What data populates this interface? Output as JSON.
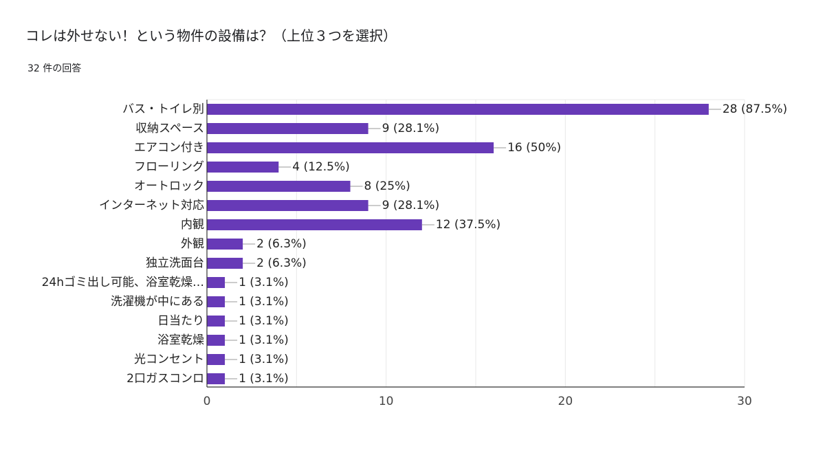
{
  "title": "コレは外せない！という物件の設備は？（上位３つを選択）",
  "response_count": "32 件の回答",
  "colors": {
    "bar": "#673ab7",
    "grid": "#e8e8e8",
    "axis": "#333333",
    "leader": "#999999"
  },
  "chart_data": {
    "type": "bar",
    "orientation": "horizontal",
    "title": "コレは外せない！という物件の設備は？（上位３つを選択）",
    "categories": [
      "バス・トイレ別",
      "収納スペース",
      "エアコン付き",
      "フローリング",
      "オートロック",
      "インターネット対応",
      "内観",
      "外観",
      "独立洗面台",
      "24hゴミ出し可能、浴室乾燥…",
      "洗濯機が中にある",
      "日当たり",
      "浴室乾燥",
      "光コンセント",
      "2口ガスコンロ"
    ],
    "values": [
      28,
      9,
      16,
      4,
      8,
      9,
      12,
      2,
      2,
      1,
      1,
      1,
      1,
      1,
      1
    ],
    "data_labels": [
      "28 (87.5%)",
      "9 (28.1%)",
      "16 (50%)",
      "4 (12.5%)",
      "8 (25%)",
      "9 (28.1%)",
      "12 (37.5%)",
      "2 (6.3%)",
      "2 (6.3%)",
      "1 (3.1%)",
      "1 (3.1%)",
      "1 (3.1%)",
      "1 (3.1%)",
      "1 (3.1%)",
      "1 (3.1%)"
    ],
    "xlim": [
      0,
      30
    ],
    "x_ticks": [
      0,
      10,
      20,
      30
    ],
    "x_tick_labels": [
      "0",
      "10",
      "20",
      "30"
    ],
    "grid": true,
    "legend": "none"
  }
}
